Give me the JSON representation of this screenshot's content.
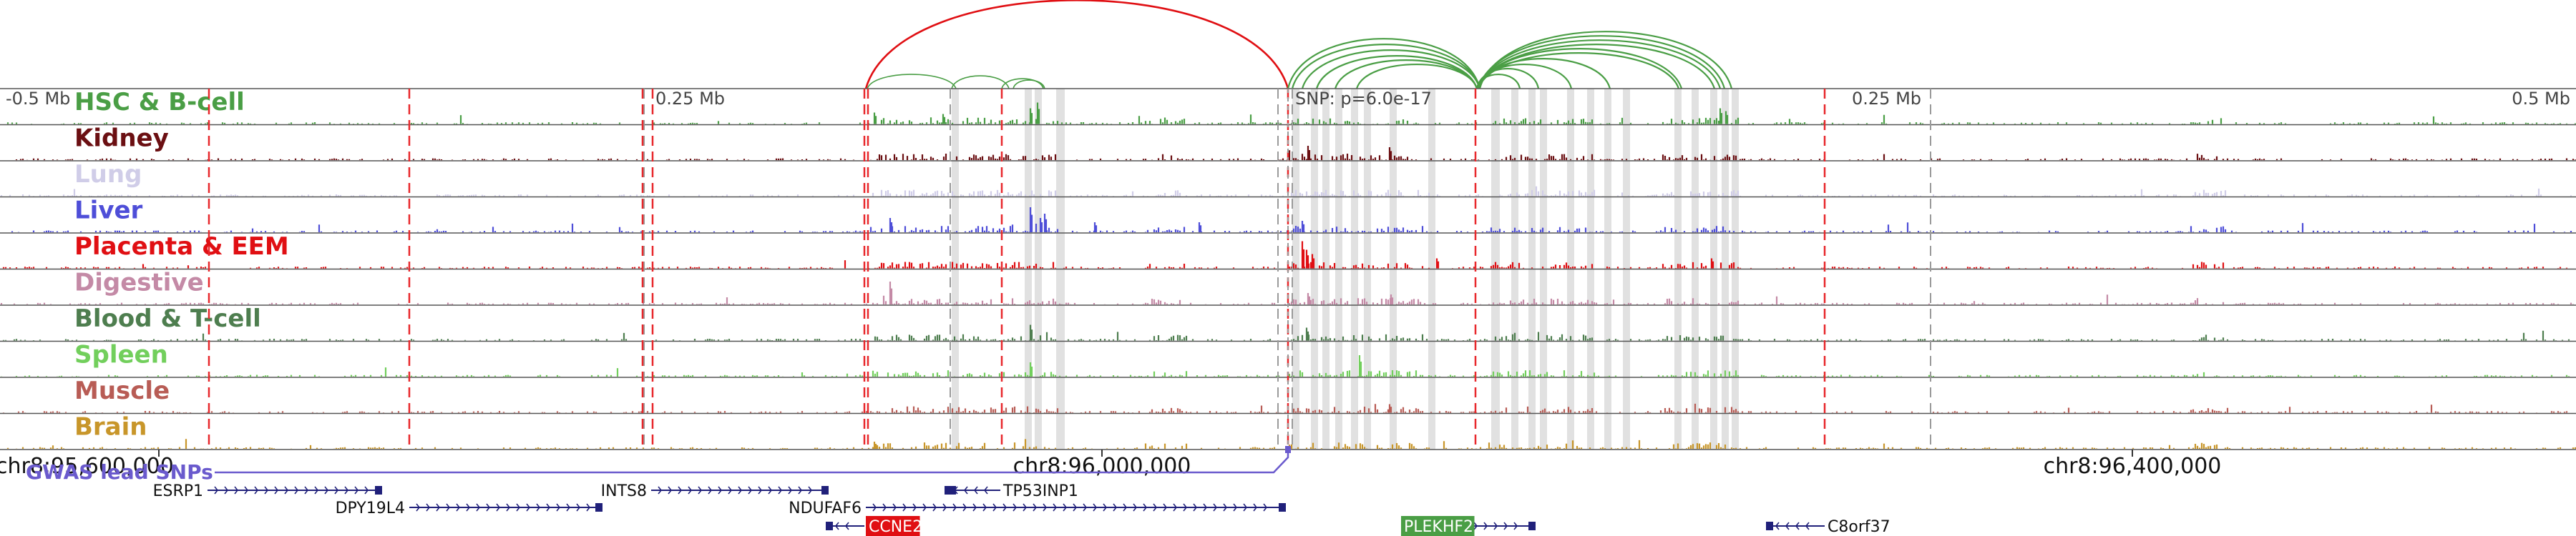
{
  "region_ticks": [
    {
      "label": "-0.5 Mb",
      "pos": "left"
    },
    {
      "label": "0.25 Mb",
      "pos": "left-mid"
    },
    {
      "label": "SNP: p=6.0e-17",
      "pos": "center"
    },
    {
      "label": "0.25 Mb",
      "pos": "right-mid"
    },
    {
      "label": "0.5 Mb",
      "pos": "right"
    }
  ],
  "tracks": [
    {
      "name": "HSC & B-cell",
      "color": "#4a9e45"
    },
    {
      "name": "Kidney",
      "color": "#6b0f12"
    },
    {
      "name": "Lung",
      "color": "#d0cde8"
    },
    {
      "name": "Liver",
      "color": "#4e4ed8"
    },
    {
      "name": "Placenta & EEM",
      "color": "#e00f13"
    },
    {
      "name": "Digestive",
      "color": "#c48aa6"
    },
    {
      "name": "Blood & T-cell",
      "color": "#4e7e4f"
    },
    {
      "name": "Spleen",
      "color": "#72cf5c"
    },
    {
      "name": "Muscle",
      "color": "#b85c55"
    },
    {
      "name": "Brain",
      "color": "#c8962a"
    }
  ],
  "axis": {
    "ticks": [
      "chr8:95,600,000",
      "chr8:96,000,000",
      "chr8:96,400,000"
    ]
  },
  "gwas_label": "GWAS lead SNPs",
  "genes": [
    {
      "name": "ESRP1",
      "strand": "+",
      "highlight": false
    },
    {
      "name": "DPY19L4",
      "strand": "+",
      "highlight": false
    },
    {
      "name": "INTS8",
      "strand": "+",
      "highlight": false
    },
    {
      "name": "TP53INP1",
      "strand": "-",
      "highlight": false
    },
    {
      "name": "NDUFAF6",
      "strand": "+",
      "highlight": false
    },
    {
      "name": "CCNE2",
      "strand": "-",
      "highlight": true,
      "highlight_color": "#e00f13"
    },
    {
      "name": "PLEKHF2",
      "strand": "+",
      "highlight": true,
      "highlight_color": "#4a9e45"
    },
    {
      "name": "C8orf37",
      "strand": "-",
      "highlight": false
    }
  ],
  "colors": {
    "arc_red": "#e00f13",
    "arc_green": "#4a9e45",
    "dashed_red": "#e8282c",
    "dashed_grey": "#9a9a9a",
    "gene_blue": "#20207a",
    "gwas": "#6a5acd"
  }
}
